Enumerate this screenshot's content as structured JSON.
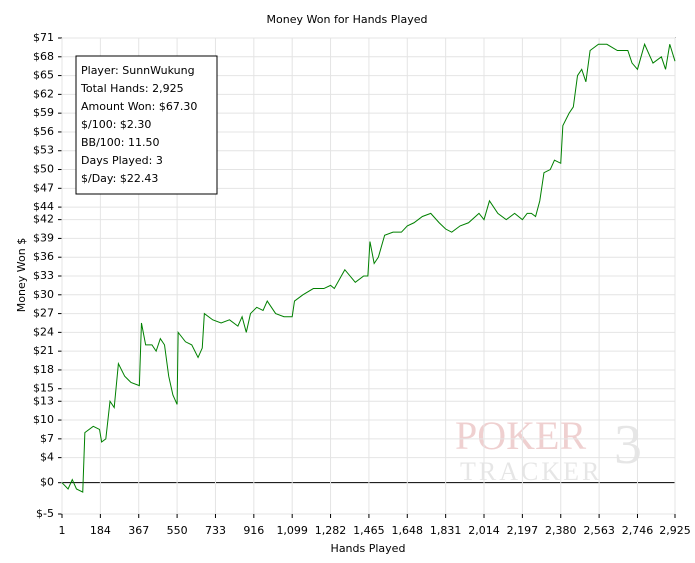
{
  "chart_data": {
    "type": "line",
    "title": "Money Won for Hands Played",
    "x_label": "Hands Played",
    "y_label": "Money Won $",
    "xlim": [
      1,
      2925
    ],
    "ylim": [
      -5,
      71
    ],
    "xticks": [
      1,
      184,
      367,
      550,
      733,
      916,
      {
        "value": 1099,
        "label": "1,099"
      },
      {
        "value": 1282,
        "label": "1,282"
      },
      {
        "value": 1465,
        "label": "1,465"
      },
      {
        "value": 1648,
        "label": "1,648"
      },
      {
        "value": 1831,
        "label": "1,831"
      },
      {
        "value": 2014,
        "label": "2,014"
      },
      {
        "value": 2197,
        "label": "2,197"
      },
      {
        "value": 2380,
        "label": "2,380"
      },
      {
        "value": 2563,
        "label": "2,563"
      },
      {
        "value": 2746,
        "label": "2,746"
      },
      {
        "value": 2925,
        "label": "2,925"
      }
    ],
    "yticks": [
      {
        "value": -5,
        "label": "$-5"
      },
      {
        "value": 0,
        "label": "$0"
      },
      {
        "value": 4,
        "label": "$4"
      },
      {
        "value": 7,
        "label": "$7"
      },
      {
        "value": 10,
        "label": "$10"
      },
      {
        "value": 13,
        "label": "$13"
      },
      {
        "value": 15,
        "label": "$15"
      },
      {
        "value": 18,
        "label": "$18"
      },
      {
        "value": 21,
        "label": "$21"
      },
      {
        "value": 24,
        "label": "$24"
      },
      {
        "value": 27,
        "label": "$27"
      },
      {
        "value": 30,
        "label": "$30"
      },
      {
        "value": 33,
        "label": "$33"
      },
      {
        "value": 36,
        "label": "$36"
      },
      {
        "value": 39,
        "label": "$39"
      },
      {
        "value": 42,
        "label": "$42"
      },
      {
        "value": 44,
        "label": "$44"
      },
      {
        "value": 47,
        "label": "$47"
      },
      {
        "value": 50,
        "label": "$50"
      },
      {
        "value": 53,
        "label": "$53"
      },
      {
        "value": 56,
        "label": "$56"
      },
      {
        "value": 59,
        "label": "$59"
      },
      {
        "value": 62,
        "label": "$62"
      },
      {
        "value": 65,
        "label": "$65"
      },
      {
        "value": 68,
        "label": "$68"
      },
      {
        "value": 71,
        "label": "$71"
      }
    ],
    "grid": true,
    "zero_line": true,
    "x": [
      1,
      30,
      50,
      70,
      100,
      110,
      150,
      180,
      190,
      210,
      230,
      250,
      270,
      300,
      330,
      370,
      380,
      400,
      430,
      450,
      470,
      490,
      510,
      530,
      550,
      555,
      590,
      620,
      650,
      670,
      680,
      720,
      760,
      800,
      840,
      860,
      880,
      900,
      930,
      960,
      980,
      1020,
      1060,
      1099,
      1110,
      1150,
      1200,
      1250,
      1282,
      1300,
      1350,
      1400,
      1440,
      1460,
      1470,
      1490,
      1510,
      1540,
      1580,
      1620,
      1648,
      1680,
      1720,
      1760,
      1800,
      1831,
      1860,
      1900,
      1940,
      1990,
      2014,
      2040,
      2080,
      2120,
      2160,
      2197,
      2220,
      2240,
      2260,
      2280,
      2300,
      2330,
      2350,
      2380,
      2390,
      2420,
      2440,
      2460,
      2480,
      2500,
      2520,
      2560,
      2600,
      2650,
      2700,
      2720,
      2746,
      2780,
      2820,
      2860,
      2880,
      2900,
      2925
    ],
    "series": [
      {
        "name": "Money Won",
        "color": "#008000",
        "values": [
          0,
          -1,
          0.5,
          -1,
          -1.5,
          8,
          9,
          8.5,
          6.5,
          7,
          13,
          12,
          19,
          17,
          16,
          15.5,
          25.5,
          22,
          22,
          21,
          23,
          22,
          17,
          14,
          12.5,
          24,
          22.5,
          22,
          20,
          21.5,
          27,
          26,
          25.5,
          26,
          25,
          26.5,
          24,
          27,
          28,
          27.5,
          29,
          27,
          26.5,
          26.5,
          29,
          30,
          31,
          31,
          31.5,
          31,
          34,
          32,
          33,
          33,
          38.5,
          35,
          36,
          39.5,
          40,
          40,
          41,
          41.5,
          42.5,
          43,
          41.5,
          40.5,
          40,
          41,
          41.5,
          43,
          42,
          45,
          43,
          42,
          43,
          42,
          43,
          43,
          42.5,
          45,
          49.5,
          50,
          51.5,
          51,
          57,
          59,
          60,
          65,
          66,
          64,
          69,
          70,
          70,
          69,
          69,
          67,
          66,
          70,
          67,
          68,
          66,
          70,
          67.3
        ]
      }
    ],
    "info_box": [
      "Player: SunnWukung",
      "Total Hands: 2,925",
      "Amount Won: $67.30",
      "$/100: $2.30",
      "BB/100: 11.50",
      "Days Played: 3",
      "$/Day: $22.43"
    ],
    "watermark": [
      "POKER",
      "TRACKER",
      "3"
    ]
  }
}
